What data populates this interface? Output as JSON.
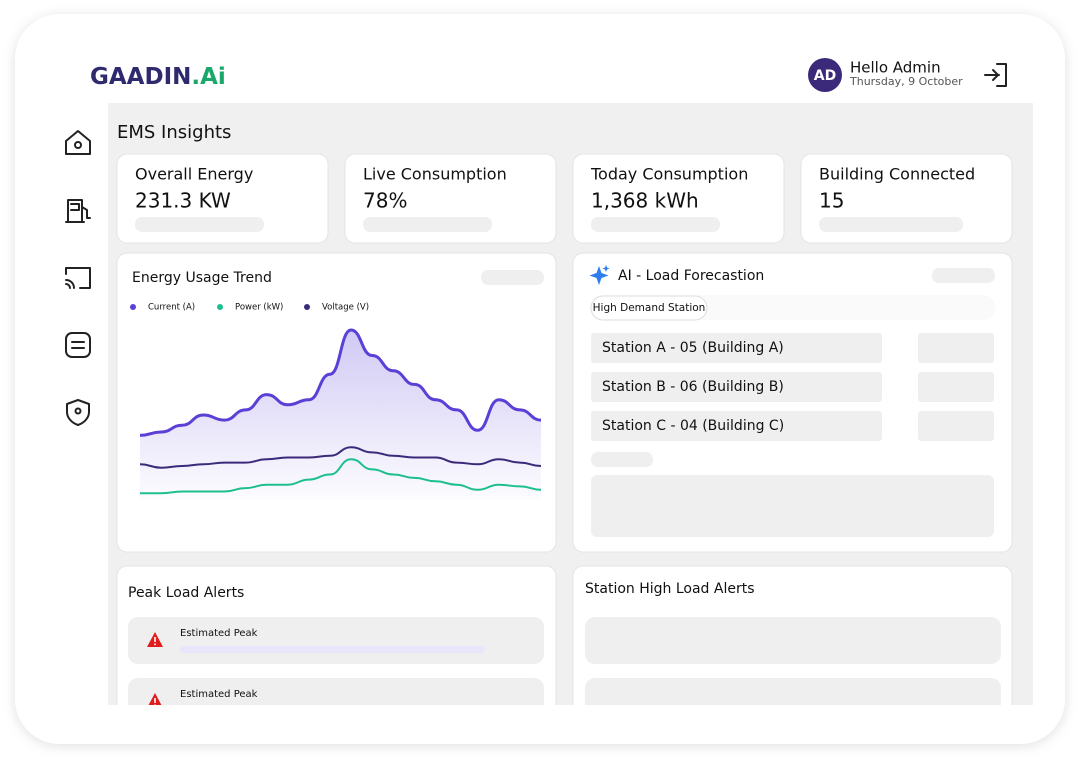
{
  "header": {
    "logo_main": "GAADIN",
    "logo_accent": ".Ai",
    "avatar": "AD",
    "greeting": "Hello Admin",
    "date": "Thursday, 9 October"
  },
  "page_title": "EMS Insights",
  "cards": [
    {
      "label": "Overall Energy",
      "value": "231.3 KW"
    },
    {
      "label": "Live Consumption",
      "value": "78%"
    },
    {
      "label": "Today Consumption",
      "value": "1,368 kWh"
    },
    {
      "label": "Building Connected",
      "value": "15"
    }
  ],
  "chart_data": {
    "type": "line",
    "title": "Energy Usage Trend",
    "ylim": [
      0,
      100
    ],
    "series": [
      {
        "name": "Current (A)",
        "color": "#5b3fd6",
        "values": [
          38,
          40,
          44,
          50,
          47,
          53,
          62,
          56,
          59,
          74,
          100,
          85,
          76,
          68,
          59,
          53,
          41,
          59,
          53,
          47
        ]
      },
      {
        "name": "Power (kW)",
        "color": "#1dbf8f",
        "values": [
          4,
          4,
          5,
          5,
          5,
          7,
          9,
          9,
          12,
          15,
          24,
          18,
          15,
          13,
          11,
          9,
          6,
          9,
          8,
          6
        ]
      },
      {
        "name": "Voltage (V)",
        "color": "#3b2a7a",
        "values": [
          21,
          19,
          20,
          21,
          22,
          22,
          24,
          25,
          25,
          26,
          31,
          28,
          26,
          25,
          25,
          22,
          21,
          24,
          22,
          20
        ]
      }
    ]
  },
  "forecast": {
    "title": "AI - Load Forecastion",
    "tag": "High Demand Station",
    "stations": [
      "Station A - 05 (Building A)",
      "Station B - 06 (Building B)",
      "Station C - 04 (Building C)"
    ]
  },
  "peak_alerts": {
    "title": "Peak Load Alerts",
    "items": [
      "Estimated Peak",
      "Estimated Peak"
    ]
  },
  "station_alerts": {
    "title": "Station High Load Alerts"
  }
}
